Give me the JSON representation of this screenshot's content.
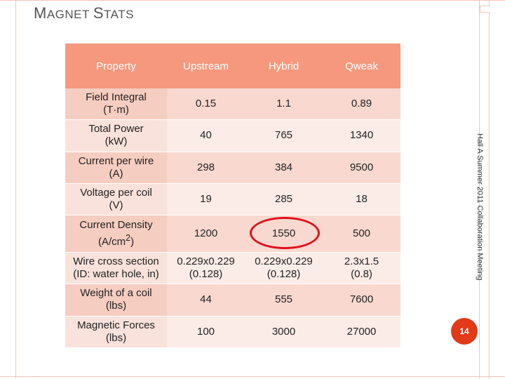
{
  "slide": {
    "title": "Magnet Stats",
    "side_note": "Hall A Summer 2011 Collaboration Meeting",
    "page_number": "14"
  },
  "table": {
    "headers": [
      "Property",
      "Upstream",
      "Hybrid",
      "Qweak"
    ],
    "rows": [
      {
        "property_line1": "Field Integral",
        "property_line2": "(T·m)",
        "property_sup": "",
        "property_line2_end": "",
        "upstream": "0.15",
        "upstream2": "",
        "hybrid": "1.1",
        "hybrid2": "",
        "qweak": "0.89",
        "qweak2": ""
      },
      {
        "property_line1": "Total Power",
        "property_line2": "(kW)",
        "property_sup": "",
        "property_line2_end": "",
        "upstream": "40",
        "upstream2": "",
        "hybrid": "765",
        "hybrid2": "",
        "qweak": "1340",
        "qweak2": ""
      },
      {
        "property_line1": "Current per wire",
        "property_line2": "(A)",
        "property_sup": "",
        "property_line2_end": "",
        "upstream": "298",
        "upstream2": "",
        "hybrid": "384",
        "hybrid2": "",
        "qweak": "9500",
        "qweak2": ""
      },
      {
        "property_line1": "Voltage per coil",
        "property_line2": "(V)",
        "property_sup": "",
        "property_line2_end": "",
        "upstream": "19",
        "upstream2": "",
        "hybrid": "285",
        "hybrid2": "",
        "qweak": "18",
        "qweak2": ""
      },
      {
        "property_line1": "Current Density",
        "property_line2": "(A/cm",
        "property_sup": "2",
        "property_line2_end": ")",
        "upstream": "1200",
        "upstream2": "",
        "hybrid": "1550",
        "hybrid2": "",
        "qweak": "500",
        "qweak2": ""
      },
      {
        "property_line1": "Wire cross section",
        "property_line2": "(ID: water hole, in)",
        "property_sup": "",
        "property_line2_end": "",
        "upstream": "0.229x0.229",
        "upstream2": "(0.128)",
        "hybrid": "0.229x0.229",
        "hybrid2": "(0.128)",
        "qweak": "2.3x1.5",
        "qweak2": "(0.8)"
      },
      {
        "property_line1": "Weight of a coil",
        "property_line2": "(lbs)",
        "property_sup": "",
        "property_line2_end": "",
        "upstream": "44",
        "upstream2": "",
        "hybrid": "555",
        "hybrid2": "",
        "qweak": "7600",
        "qweak2": ""
      },
      {
        "property_line1": "Magnetic Forces",
        "property_line2": "(lbs)",
        "property_sup": "",
        "property_line2_end": "",
        "upstream": "100",
        "upstream2": "",
        "hybrid": "3000",
        "hybrid2": "",
        "qweak": "27000",
        "qweak2": ""
      }
    ]
  },
  "colors": {
    "header": "#f5987d",
    "row_odd": "#f9d9cf",
    "row_even": "#fcece7",
    "highlight_ring": "#e0101c",
    "page_badge": "#e03a18"
  }
}
